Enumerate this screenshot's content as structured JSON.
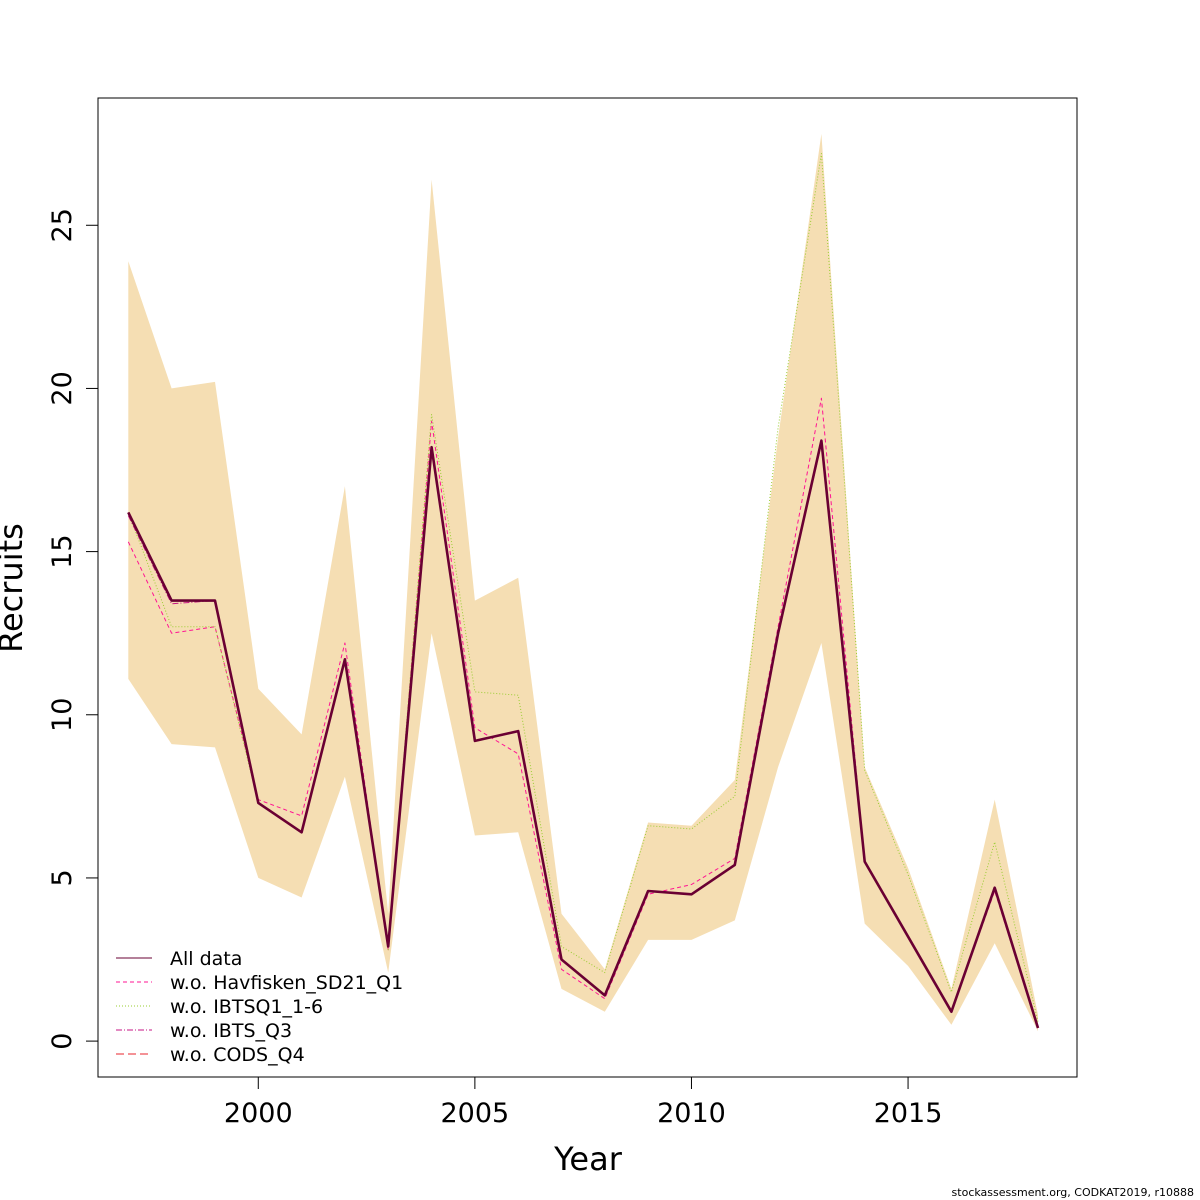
{
  "chart_data": {
    "type": "line",
    "title": "",
    "xlabel": "Year",
    "ylabel": "Recruits",
    "xlim": [
      1996.3,
      2018.9
    ],
    "ylim": [
      -1.1,
      28.9
    ],
    "x_ticks": [
      2000,
      2005,
      2010,
      2015
    ],
    "y_ticks": [
      0,
      5,
      10,
      15,
      20,
      25
    ],
    "grid": false,
    "legend_position": "bottom-left",
    "x": [
      1997,
      1998,
      1999,
      2000,
      2001,
      2002,
      2003,
      2004,
      2005,
      2006,
      2007,
      2008,
      2009,
      2010,
      2011,
      2012,
      2013,
      2014,
      2015,
      2016,
      2017,
      2018
    ],
    "confidence_band": {
      "color": "#f5deb3",
      "lower": [
        11.1,
        9.1,
        9.0,
        5.0,
        4.4,
        8.1,
        2.1,
        12.5,
        6.3,
        6.4,
        1.6,
        0.9,
        3.1,
        3.1,
        3.7,
        8.4,
        12.2,
        3.6,
        2.3,
        0.5,
        3.0,
        0.3
      ],
      "upper": [
        23.9,
        20.0,
        20.2,
        10.8,
        9.4,
        17.0,
        3.9,
        26.4,
        13.5,
        14.2,
        3.9,
        2.2,
        6.7,
        6.6,
        8.0,
        18.5,
        27.8,
        8.4,
        5.3,
        1.6,
        7.4,
        0.8
      ]
    },
    "series": [
      {
        "name": "All data",
        "color": "#6a0033",
        "dash": "solid",
        "width": 2.6,
        "values": [
          16.2,
          13.5,
          13.5,
          7.3,
          6.4,
          11.7,
          2.9,
          18.2,
          9.2,
          9.5,
          2.5,
          1.4,
          4.6,
          4.5,
          5.4,
          12.5,
          18.4,
          5.5,
          3.2,
          0.9,
          4.7,
          0.4
        ]
      },
      {
        "name": "w.o. Havfisken_SD21_Q1",
        "color": "#ff1493",
        "dash": "4,3",
        "width": 1,
        "values": [
          15.3,
          12.5,
          12.7,
          7.4,
          6.9,
          12.2,
          2.8,
          19.0,
          9.6,
          8.8,
          2.2,
          1.3,
          4.5,
          4.8,
          5.6,
          12.7,
          19.7,
          5.5,
          3.2,
          0.9,
          4.6,
          0.4
        ]
      },
      {
        "name": "w.o. IBTSQ1_1-6",
        "color": "#9acd32",
        "dash": "1,2",
        "width": 1,
        "values": [
          16.2,
          12.7,
          12.7,
          7.3,
          6.4,
          11.6,
          2.8,
          19.2,
          10.7,
          10.6,
          2.9,
          2.1,
          6.6,
          6.5,
          7.5,
          18.8,
          27.2,
          8.3,
          5.1,
          1.5,
          6.1,
          0.6
        ]
      },
      {
        "name": "w.o. IBTS_Q3",
        "color": "#c71585",
        "dash": "6,2,1,2",
        "width": 1,
        "values": [
          16.1,
          13.4,
          13.5,
          7.3,
          6.4,
          11.7,
          2.9,
          18.1,
          9.2,
          9.5,
          2.5,
          1.4,
          4.6,
          4.5,
          5.4,
          12.5,
          18.3,
          5.5,
          3.2,
          0.9,
          4.7,
          0.4
        ]
      },
      {
        "name": "w.o. CODS_Q4",
        "color": "#e8252d",
        "dash": "8,4",
        "width": 1,
        "values": [
          16.2,
          13.5,
          13.5,
          7.3,
          6.4,
          11.7,
          2.9,
          18.2,
          9.2,
          9.5,
          2.5,
          1.4,
          4.6,
          4.5,
          5.4,
          12.5,
          18.4,
          5.5,
          3.2,
          0.9,
          4.7,
          0.4
        ]
      }
    ]
  },
  "footer": {
    "credit": "stockassessment.org, CODKAT2019, r10888"
  }
}
